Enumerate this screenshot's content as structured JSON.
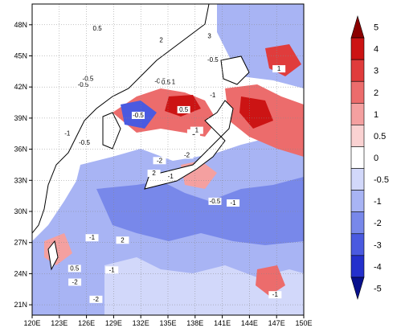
{
  "map": {
    "lon_ticks": [
      "120E",
      "123E",
      "126E",
      "129E",
      "132E",
      "135E",
      "138E",
      "141E",
      "144E",
      "147E",
      "150E"
    ],
    "lat_ticks": [
      "21N",
      "24N",
      "27N",
      "30N",
      "33N",
      "36N",
      "39N",
      "42N",
      "45N",
      "48N"
    ],
    "lon_range": [
      120,
      150
    ],
    "lat_range": [
      20,
      50
    ],
    "contour_labels": [
      "-1",
      "-0.5",
      "-2",
      "0.5",
      "1",
      "2",
      "3",
      "-1",
      "-0.5",
      "-2",
      "0.5",
      "-1",
      "-0.5",
      "1",
      "2",
      "-1",
      "-2",
      "-0.5",
      "0.5",
      "-1",
      "-0.5",
      "-2",
      "-1",
      "0.5",
      "1",
      "-1",
      "-0.5",
      "2",
      "-1",
      "-0.5"
    ]
  },
  "colorbar": {
    "levels": [
      "5",
      "4",
      "3",
      "2",
      "1",
      "0.5",
      "0",
      "-0.5",
      "-1",
      "-2",
      "-3",
      "-4",
      "-5"
    ],
    "colors": [
      "#8b0000",
      "#cc1414",
      "#e03c3c",
      "#ec6c6c",
      "#f4a0a0",
      "#fad2d2",
      "#ffffff",
      "#d2d8fa",
      "#a8b4f4",
      "#7888ea",
      "#4a5ae0",
      "#2430cc",
      "#08108c"
    ]
  }
}
